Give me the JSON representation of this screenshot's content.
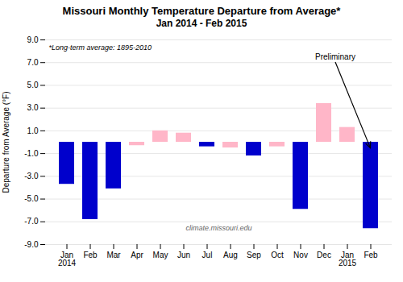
{
  "chart_data": {
    "type": "bar",
    "title": "Missouri Monthly Temperature Departure from Average*",
    "subtitle": "Jan 2014 - Feb 2015",
    "ylabel": "Departure from Average (°F)",
    "categories": [
      "Jan\n2014",
      "Feb",
      "Mar",
      "Apr",
      "May",
      "Jun",
      "Jul",
      "Aug",
      "Sep",
      "Oct",
      "Nov",
      "Dec",
      "Jan\n2015",
      "Feb"
    ],
    "values": [
      -3.7,
      -6.8,
      -4.1,
      -0.3,
      1.0,
      0.8,
      -0.4,
      -0.5,
      -1.2,
      -0.4,
      -5.9,
      3.4,
      1.3,
      -7.6
    ],
    "colors": [
      "#0000cc",
      "#0000cc",
      "#0000cc",
      "#ffb6c8",
      "#ffb6c8",
      "#ffb6c8",
      "#0000cc",
      "#ffb6c8",
      "#0000cc",
      "#ffb6c8",
      "#0000cc",
      "#ffb6c8",
      "#ffb6c8",
      "#0000cc"
    ],
    "ylim": [
      -9.0,
      9.0
    ],
    "yticks": [
      {
        "value": -9,
        "label": "-9.0"
      },
      {
        "value": -7,
        "label": "-7.0"
      },
      {
        "value": -5,
        "label": "-5.0"
      },
      {
        "value": -3,
        "label": "-3.0"
      },
      {
        "value": -1,
        "label": "-1.0"
      },
      {
        "value": 1,
        "label": "1.0"
      },
      {
        "value": 3,
        "label": "3.0"
      },
      {
        "value": 5,
        "label": "5.0"
      },
      {
        "value": 7,
        "label": "7.0"
      },
      {
        "value": 9,
        "label": "9.0"
      }
    ],
    "grid": true,
    "annotations": [
      "*Long-term average: 1895-2010",
      "Preliminary",
      "climate.missouri.edu"
    ]
  }
}
